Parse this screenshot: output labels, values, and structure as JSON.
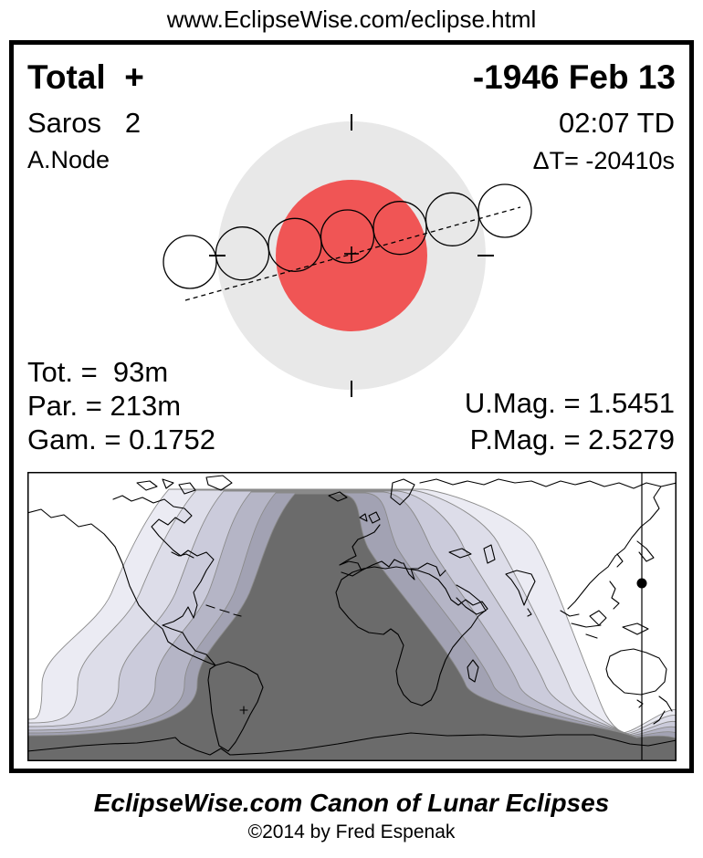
{
  "header": {
    "url": "www.EclipseWise.com/eclipse.html"
  },
  "info": {
    "eclipse_type": "Total  +",
    "date": "-1946 Feb 13",
    "saros": "Saros   2",
    "time": "02:07 TD",
    "node": "A.Node",
    "delta_t": "ΔT= -20410s"
  },
  "stats": {
    "left": [
      "Tot. =  93m",
      "Par. = 213m",
      "Gam. = 0.1752"
    ],
    "right": [
      "U.Mag. = 1.5451",
      "P.Mag. = 2.5279"
    ]
  },
  "diagram": {
    "penumbra_color": "#e8e8e8",
    "umbra_color": "#f05555",
    "moon_positions": 7
  },
  "map": {
    "band_colors": [
      "#ebebf3",
      "#dddde9",
      "#cbcbdb",
      "#b5b5c6",
      "#a2a2b3"
    ],
    "shadow_color": "#6b6b6b",
    "outline_color": "#8a8a8a"
  },
  "footer": {
    "title": "EclipseWise.com Canon of Lunar Eclipses",
    "copyright": "©2014 by Fred Espenak"
  }
}
